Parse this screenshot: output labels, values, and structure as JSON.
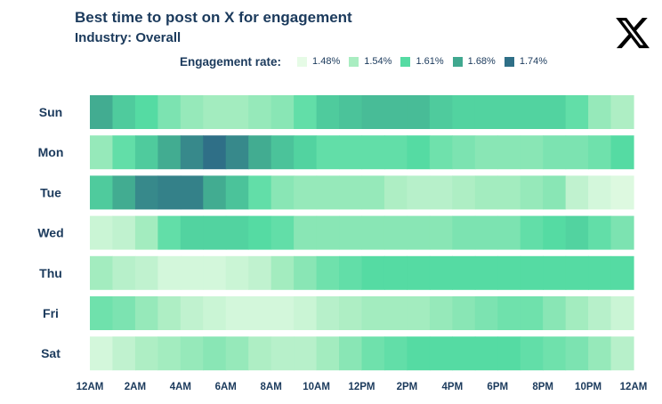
{
  "header": {
    "title": "Best time to post on X for engagement",
    "subtitle": "Industry: Overall",
    "logo_icon": "x-logo-icon"
  },
  "chart_data": {
    "type": "heatmap",
    "title": "Best time to post on X for engagement",
    "subtitle": "Industry: Overall",
    "legend": {
      "title": "Engagement rate:",
      "placement": "top",
      "entries": [
        {
          "label": "1.48%",
          "color": "#e6fbe6"
        },
        {
          "label": "1.54%",
          "color": "#a9edc1"
        },
        {
          "label": "1.61%",
          "color": "#55dba3"
        },
        {
          "label": "1.68%",
          "color": "#40a88f"
        },
        {
          "label": "1.74%",
          "color": "#2f6f87"
        }
      ]
    },
    "scale_min": 1.48,
    "scale_max": 1.74,
    "rows": [
      "Sun",
      "Mon",
      "Tue",
      "Wed",
      "Thu",
      "Fri",
      "Sat"
    ],
    "x_ticks": [
      "12AM",
      "2AM",
      "4AM",
      "6AM",
      "8AM",
      "10AM",
      "12PM",
      "2PM",
      "4PM",
      "6PM",
      "8PM",
      "10PM",
      "12AM"
    ],
    "hours_per_row": 24,
    "values": [
      [
        1.67,
        1.63,
        1.61,
        1.58,
        1.56,
        1.55,
        1.55,
        1.56,
        1.57,
        1.6,
        1.63,
        1.64,
        1.65,
        1.65,
        1.65,
        1.63,
        1.62,
        1.62,
        1.62,
        1.62,
        1.62,
        1.6,
        1.56,
        1.54
      ],
      [
        1.56,
        1.6,
        1.63,
        1.67,
        1.71,
        1.74,
        1.71,
        1.67,
        1.64,
        1.62,
        1.6,
        1.6,
        1.6,
        1.6,
        1.61,
        1.59,
        1.58,
        1.57,
        1.57,
        1.57,
        1.58,
        1.58,
        1.59,
        1.61
      ],
      [
        1.63,
        1.67,
        1.71,
        1.72,
        1.72,
        1.67,
        1.64,
        1.6,
        1.57,
        1.56,
        1.56,
        1.56,
        1.56,
        1.54,
        1.53,
        1.53,
        1.54,
        1.55,
        1.55,
        1.56,
        1.57,
        1.52,
        1.5,
        1.49
      ],
      [
        1.51,
        1.52,
        1.55,
        1.6,
        1.62,
        1.62,
        1.62,
        1.61,
        1.6,
        1.57,
        1.57,
        1.57,
        1.57,
        1.57,
        1.57,
        1.57,
        1.58,
        1.58,
        1.58,
        1.6,
        1.61,
        1.62,
        1.6,
        1.58
      ],
      [
        1.55,
        1.53,
        1.52,
        1.5,
        1.5,
        1.5,
        1.51,
        1.52,
        1.55,
        1.57,
        1.59,
        1.6,
        1.61,
        1.61,
        1.61,
        1.61,
        1.61,
        1.61,
        1.61,
        1.61,
        1.61,
        1.61,
        1.61,
        1.61
      ],
      [
        1.59,
        1.58,
        1.56,
        1.54,
        1.52,
        1.51,
        1.5,
        1.5,
        1.5,
        1.51,
        1.53,
        1.54,
        1.55,
        1.55,
        1.55,
        1.56,
        1.57,
        1.58,
        1.59,
        1.59,
        1.57,
        1.55,
        1.53,
        1.51
      ],
      [
        1.5,
        1.52,
        1.54,
        1.55,
        1.56,
        1.57,
        1.56,
        1.54,
        1.53,
        1.53,
        1.55,
        1.57,
        1.59,
        1.6,
        1.61,
        1.61,
        1.61,
        1.61,
        1.61,
        1.6,
        1.59,
        1.58,
        1.56,
        1.53
      ]
    ]
  }
}
